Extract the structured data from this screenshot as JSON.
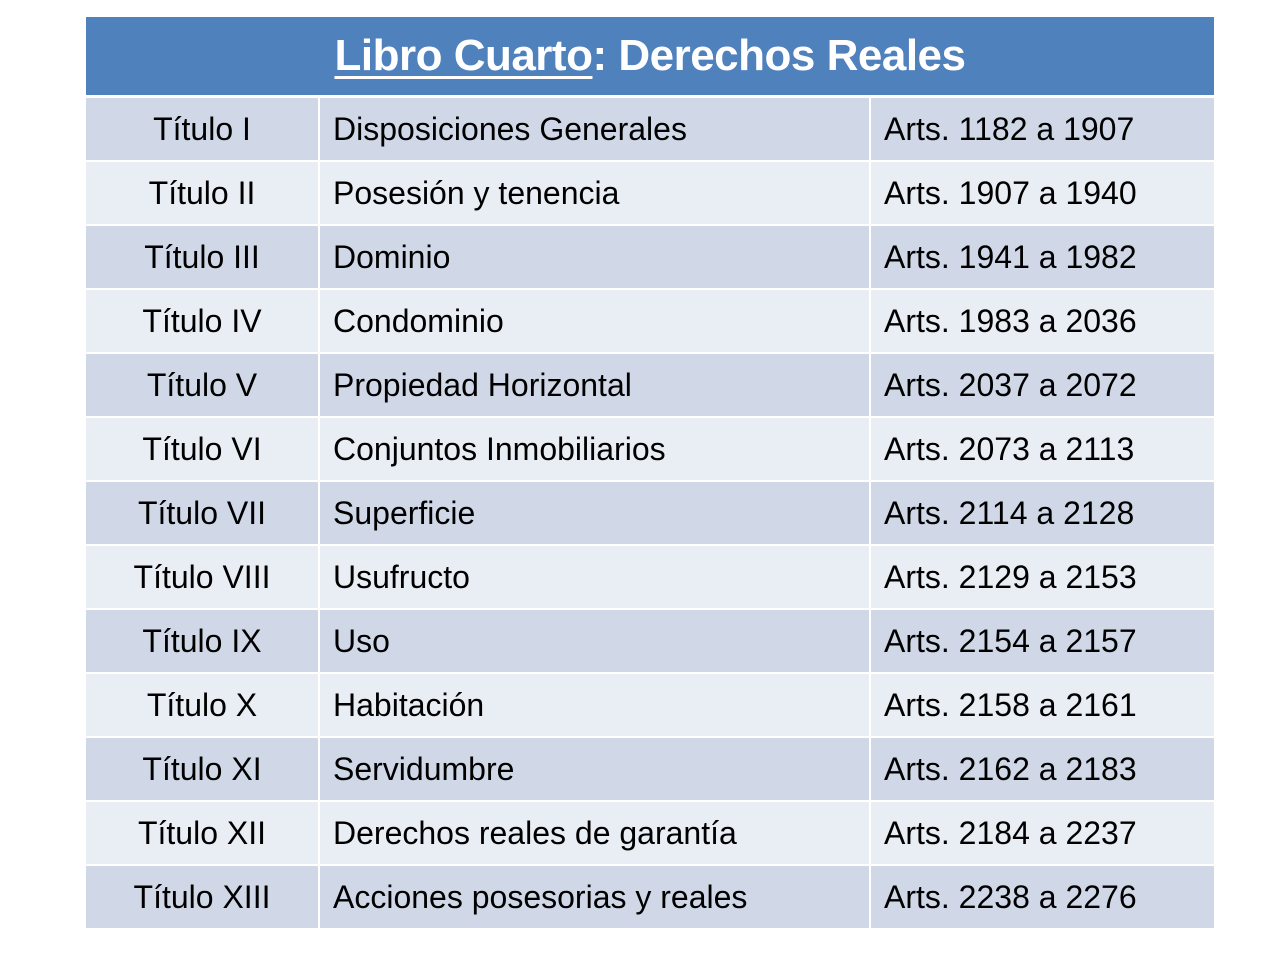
{
  "title": {
    "underlined": "Libro Cuarto",
    "rest": ": Derechos Reales"
  },
  "colors": {
    "header": "#4f81bd",
    "row_odd": "#d0d8e8",
    "row_even": "#e9edf4"
  },
  "rows": [
    {
      "titulo": "Título I",
      "nombre": "Disposiciones Generales",
      "arts": "Arts. 1182 a 1907"
    },
    {
      "titulo": "Título II",
      "nombre": "Posesión y tenencia",
      "arts": "Arts. 1907 a 1940"
    },
    {
      "titulo": "Título III",
      "nombre": "Dominio",
      "arts": "Arts. 1941 a 1982"
    },
    {
      "titulo": "Título IV",
      "nombre": "Condominio",
      "arts": "Arts. 1983 a 2036"
    },
    {
      "titulo": "Título V",
      "nombre": "Propiedad Horizontal",
      "arts": "Arts. 2037 a 2072"
    },
    {
      "titulo": "Título VI",
      "nombre": "Conjuntos Inmobiliarios",
      "arts": "Arts. 2073 a 2113"
    },
    {
      "titulo": "Título VII",
      "nombre": "Superficie",
      "arts": "Arts. 2114 a 2128"
    },
    {
      "titulo": "Título VIII",
      "nombre": "Usufructo",
      "arts": "Arts. 2129 a 2153"
    },
    {
      "titulo": "Título IX",
      "nombre": "Uso",
      "arts": "Arts. 2154 a 2157"
    },
    {
      "titulo": "Título X",
      "nombre": "Habitación",
      "arts": "Arts. 2158 a 2161"
    },
    {
      "titulo": "Título XI",
      "nombre": "Servidumbre",
      "arts": "Arts. 2162 a 2183"
    },
    {
      "titulo": "Título XII",
      "nombre": "Derechos reales de garantía",
      "arts": "Arts. 2184 a 2237"
    },
    {
      "titulo": "Título XIII",
      "nombre": "Acciones posesorias y reales",
      "arts": "Arts. 2238 a 2276"
    }
  ]
}
